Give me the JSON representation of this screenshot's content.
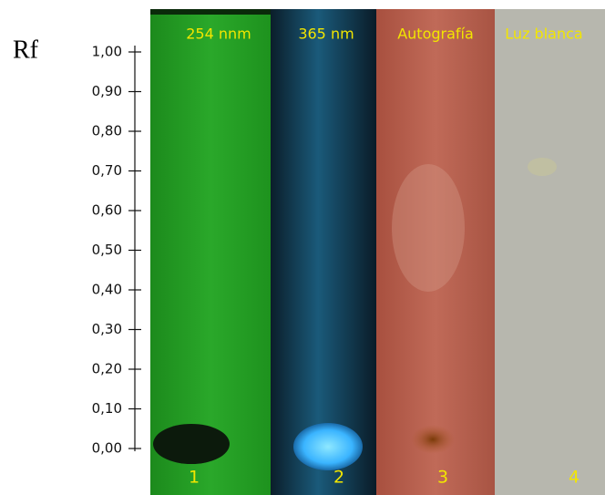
{
  "axis": {
    "title": "Rf",
    "ylim": [
      0,
      1
    ],
    "yticks": [
      {
        "value": 0,
        "label": "0,00"
      },
      {
        "value": 0.1,
        "label": "0,10"
      },
      {
        "value": 0.2,
        "label": "0,20"
      },
      {
        "value": 0.3,
        "label": "0,30"
      },
      {
        "value": 0.4,
        "label": "0,40"
      },
      {
        "value": 0.5,
        "label": "0,50"
      },
      {
        "value": 0.6,
        "label": "0,60"
      },
      {
        "value": 0.7,
        "label": "0,70"
      },
      {
        "value": 0.8,
        "label": "0,80"
      },
      {
        "value": 0.9,
        "label": "0,90"
      },
      {
        "value": 1,
        "label": "1,00"
      }
    ]
  },
  "panels": [
    {
      "label": "254 nnm",
      "number": "1"
    },
    {
      "label": "365 nm",
      "number": "2"
    },
    {
      "label": "Autografía",
      "number": "3"
    },
    {
      "label": "Luz blanca",
      "number": "4"
    }
  ]
}
